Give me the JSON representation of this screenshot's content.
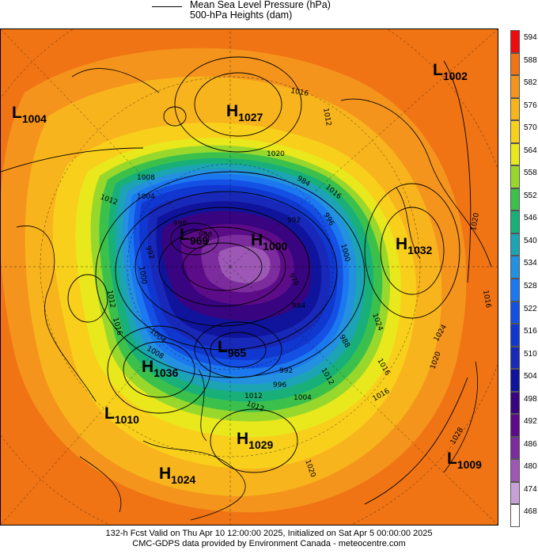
{
  "legend": {
    "line1": "Mean Sea Level Pressure (hPa)",
    "line2": "500-hPa Heights (dam)"
  },
  "colorbar": {
    "levels": [
      "594",
      "588",
      "582",
      "576",
      "570",
      "564",
      "558",
      "552",
      "546",
      "540",
      "534",
      "528",
      "522",
      "516",
      "510",
      "504",
      "498",
      "492",
      "486",
      "480",
      "474",
      "468"
    ],
    "colors": [
      "#f00c0c",
      "#f07414",
      "#f4941c",
      "#f8b41c",
      "#f8d01c",
      "#e8e81c",
      "#98d82c",
      "#3cc04c",
      "#18b078",
      "#1ca4b4",
      "#2490e0",
      "#1c78f0",
      "#1450e4",
      "#1038d0",
      "#1828b8",
      "#10149c",
      "#380480",
      "#5c0c88",
      "#7c2c9c",
      "#9c58b4",
      "#c8a0d8",
      "#ffffff"
    ]
  },
  "systems": [
    {
      "type": "L",
      "value": "1004"
    },
    {
      "type": "H",
      "value": "1027"
    },
    {
      "type": "L",
      "value": "1002"
    },
    {
      "type": "L",
      "value": "969"
    },
    {
      "type": "H",
      "value": "1000"
    },
    {
      "type": "H",
      "value": "1032"
    },
    {
      "type": "L",
      "value": "965"
    },
    {
      "type": "H",
      "value": "1036"
    },
    {
      "type": "L",
      "value": "1010"
    },
    {
      "type": "H",
      "value": "1029"
    },
    {
      "type": "L",
      "value": "1009"
    },
    {
      "type": "H",
      "value": "1024"
    }
  ],
  "isobar_labels": [
    "1016",
    "1012",
    "1020",
    "1008",
    "1004",
    "1012",
    "1016",
    "1000",
    "996",
    "992",
    "988",
    "984",
    "992",
    "996",
    "1000",
    "1004",
    "1008",
    "1012",
    "1016",
    "1020",
    "1024",
    "1028",
    "1016",
    "1012",
    "1020",
    "1024",
    "1016",
    "992",
    "996",
    "1004",
    "1012",
    "1020",
    "1016",
    "1012",
    "984",
    "988",
    "976"
  ],
  "footer": {
    "line1": "132-h Fcst Valid on Thu Apr 10 12:00:00 2025, Initialized on Sat Apr  5 00:00:00 2025",
    "line2": "CMC-GDPS data provided by Environment Canada - meteocentre.com"
  }
}
